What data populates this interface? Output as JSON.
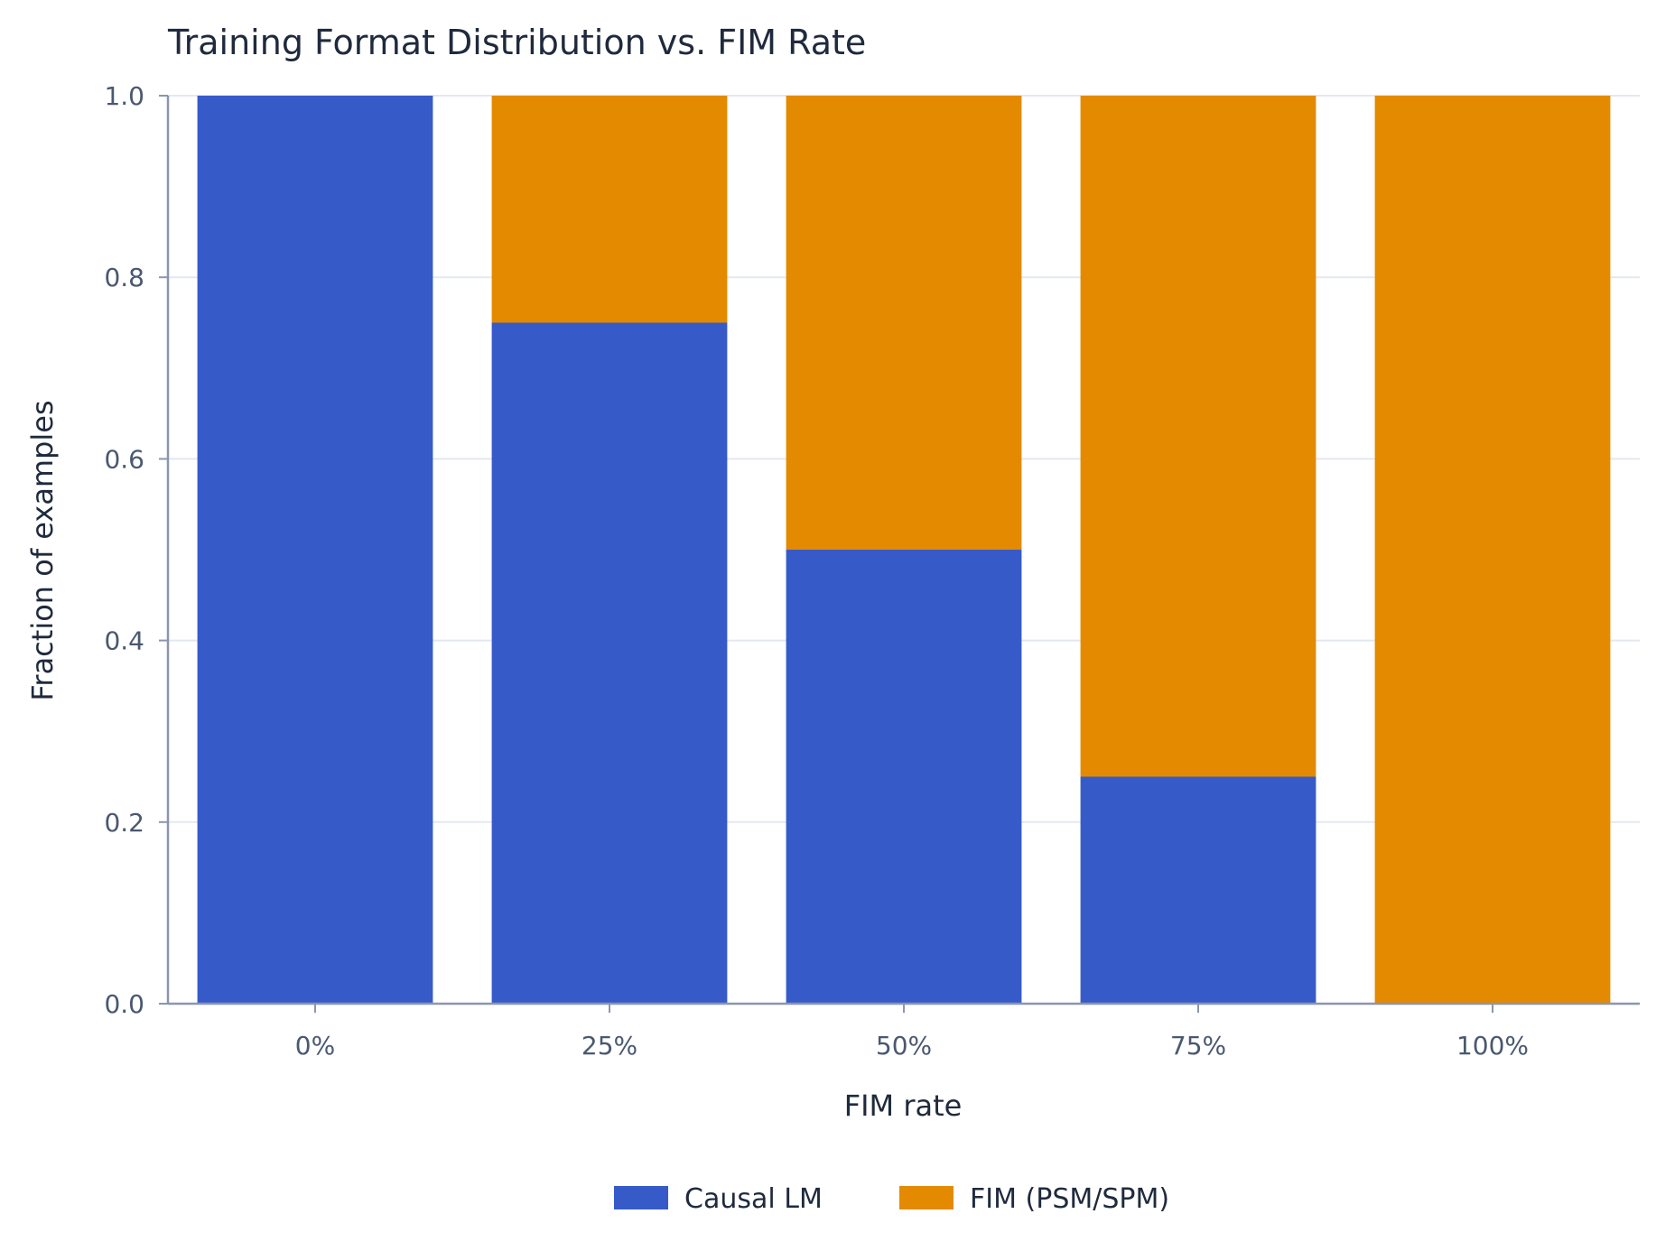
{
  "chart_data": {
    "type": "bar",
    "stacked": true,
    "title": "Training Format Distribution vs. FIM Rate",
    "xlabel": "FIM rate",
    "ylabel": "Fraction of examples",
    "categories": [
      "0%",
      "25%",
      "50%",
      "75%",
      "100%"
    ],
    "series": [
      {
        "name": "Causal LM",
        "values": [
          1.0,
          0.75,
          0.5,
          0.25,
          0.0
        ],
        "color": "#365bc8"
      },
      {
        "name": "FIM (PSM/SPM)",
        "values": [
          0.0,
          0.25,
          0.5,
          0.75,
          1.0
        ],
        "color": "#e38a00"
      }
    ],
    "ylim": [
      0,
      1.0
    ],
    "yticks": [
      "0.0",
      "0.2",
      "0.4",
      "0.6",
      "0.8",
      "1.0"
    ],
    "grid": "horizontal",
    "legend_position": "bottom"
  }
}
